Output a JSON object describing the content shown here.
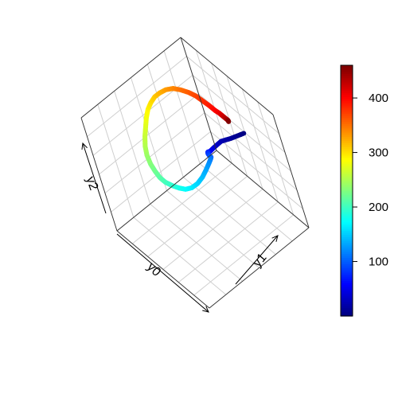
{
  "chart_data": {
    "type": "line",
    "subtype": "3d-parametric-line",
    "title": "",
    "axes": {
      "x_label": "y0",
      "y_label": "y1",
      "z_label": "y2",
      "grid": true,
      "box": true
    },
    "t_range": [
      0,
      460
    ],
    "colorbar": {
      "palette": "jet",
      "range": [
        0,
        460
      ],
      "ticks": [
        100,
        200,
        300,
        400
      ]
    },
    "series": [
      {
        "t_values": [
          0,
          10,
          20,
          30,
          40,
          50,
          60,
          70,
          80,
          90,
          100,
          110,
          120,
          130,
          140,
          150,
          160,
          170,
          180,
          190,
          200,
          210,
          220,
          230,
          240,
          250,
          260,
          270,
          280,
          290,
          300,
          310,
          320,
          330,
          340,
          350,
          360,
          370,
          380,
          390,
          400,
          410,
          420,
          430,
          440,
          450,
          460
        ],
        "x": [
          0.0,
          -0.05,
          -0.08,
          -0.02,
          0.06,
          0.16,
          0.26,
          0.35,
          0.45,
          0.55,
          0.62,
          0.66,
          0.68,
          0.68,
          0.66,
          0.6,
          0.5,
          0.38,
          0.24,
          0.1,
          -0.04,
          -0.16,
          -0.28,
          -0.38,
          -0.48,
          -0.56,
          -0.62,
          -0.66,
          -0.7,
          -0.72,
          -0.72,
          -0.7,
          -0.66,
          -0.6,
          -0.52,
          -0.42,
          -0.32,
          -0.22,
          -0.1,
          0.02,
          0.14,
          0.24,
          0.34,
          0.44,
          0.52,
          0.58,
          0.62
        ],
        "y": [
          0.98,
          0.78,
          0.62,
          0.48,
          0.36,
          0.26,
          0.18,
          0.12,
          0.06,
          0.02,
          0.0,
          -0.04,
          -0.1,
          -0.18,
          -0.26,
          -0.34,
          -0.4,
          -0.44,
          -0.46,
          -0.48,
          -0.5,
          -0.5,
          -0.48,
          -0.46,
          -0.42,
          -0.36,
          -0.28,
          -0.2,
          -0.12,
          -0.04,
          0.04,
          0.12,
          0.2,
          0.28,
          0.36,
          0.42,
          0.48,
          0.52,
          0.54,
          0.56,
          0.56,
          0.56,
          0.54,
          0.52,
          0.5,
          0.48,
          0.46
        ],
        "z": [
          0.0,
          0.02,
          0.06,
          0.12,
          0.2,
          0.3,
          0.42,
          0.52,
          0.6,
          0.66,
          0.7,
          0.72,
          0.7,
          0.64,
          0.56,
          0.46,
          0.36,
          0.28,
          0.22,
          0.18,
          0.16,
          0.16,
          0.18,
          0.22,
          0.28,
          0.34,
          0.42,
          0.5,
          0.58,
          0.66,
          0.72,
          0.78,
          0.82,
          0.86,
          0.88,
          0.88,
          0.86,
          0.84,
          0.82,
          0.8,
          0.8,
          0.82,
          0.86,
          0.9,
          0.94,
          0.98,
          1.0
        ]
      }
    ]
  }
}
